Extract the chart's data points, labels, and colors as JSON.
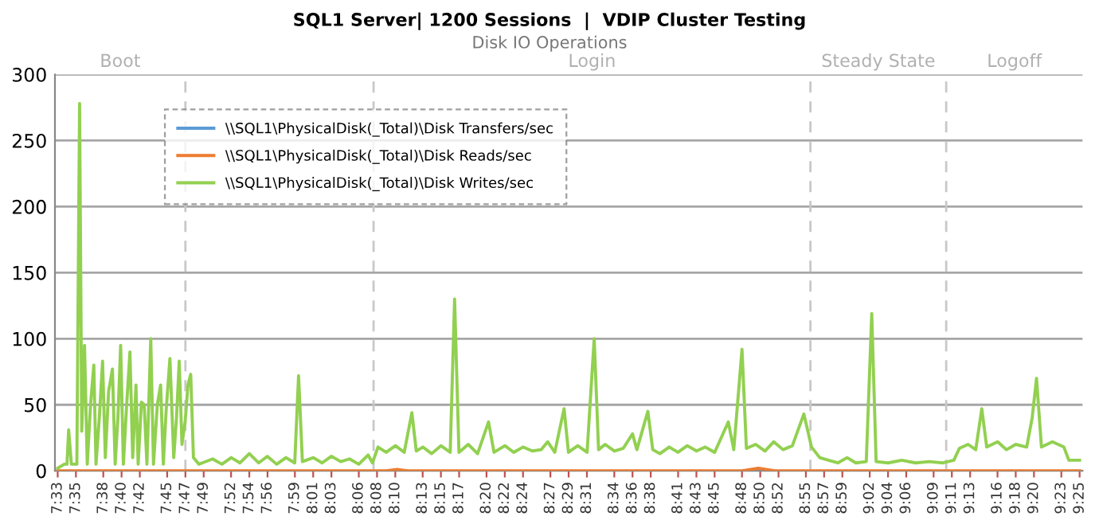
{
  "chart_data": {
    "type": "line",
    "title": "SQL1 Server| 1200 Sessions  |  VDIP Cluster Testing",
    "subtitle": "Disk IO Operations",
    "xlim": [
      7.545,
      9.422
    ],
    "ylim": [
      0,
      300
    ],
    "yticks": [
      0,
      50,
      100,
      150,
      200,
      250,
      300
    ],
    "xticks": [
      {
        "value": 7.55,
        "label": "7:33"
      },
      {
        "value": 7.5833,
        "label": "7:35"
      },
      {
        "value": 7.6333,
        "label": "7:38"
      },
      {
        "value": 7.6667,
        "label": "7:40"
      },
      {
        "value": 7.7,
        "label": "7:42"
      },
      {
        "value": 7.75,
        "label": "7:45"
      },
      {
        "value": 7.7833,
        "label": "7:47"
      },
      {
        "value": 7.8167,
        "label": "7:49"
      },
      {
        "value": 7.8667,
        "label": "7:52"
      },
      {
        "value": 7.9,
        "label": "7:54"
      },
      {
        "value": 7.9333,
        "label": "7:56"
      },
      {
        "value": 7.9833,
        "label": "7:59"
      },
      {
        "value": 8.0167,
        "label": "8:01"
      },
      {
        "value": 8.05,
        "label": "8:03"
      },
      {
        "value": 8.1,
        "label": "8:06"
      },
      {
        "value": 8.1333,
        "label": "8:08"
      },
      {
        "value": 8.1667,
        "label": "8:10"
      },
      {
        "value": 8.2167,
        "label": "8:13"
      },
      {
        "value": 8.25,
        "label": "8:15"
      },
      {
        "value": 8.2833,
        "label": "8:17"
      },
      {
        "value": 8.3333,
        "label": "8:20"
      },
      {
        "value": 8.3667,
        "label": "8:22"
      },
      {
        "value": 8.4,
        "label": "8:24"
      },
      {
        "value": 8.45,
        "label": "8:27"
      },
      {
        "value": 8.4833,
        "label": "8:29"
      },
      {
        "value": 8.5167,
        "label": "8:31"
      },
      {
        "value": 8.5667,
        "label": "8:34"
      },
      {
        "value": 8.6,
        "label": "8:36"
      },
      {
        "value": 8.6333,
        "label": "8:38"
      },
      {
        "value": 8.6833,
        "label": "8:41"
      },
      {
        "value": 8.7167,
        "label": "8:43"
      },
      {
        "value": 8.75,
        "label": "8:45"
      },
      {
        "value": 8.8,
        "label": "8:48"
      },
      {
        "value": 8.8333,
        "label": "8:50"
      },
      {
        "value": 8.8667,
        "label": "8:52"
      },
      {
        "value": 8.9167,
        "label": "8:55"
      },
      {
        "value": 8.95,
        "label": "8:57"
      },
      {
        "value": 8.9833,
        "label": "8:59"
      },
      {
        "value": 9.0333,
        "label": "9:02"
      },
      {
        "value": 9.0667,
        "label": "9:04"
      },
      {
        "value": 9.1,
        "label": "9:06"
      },
      {
        "value": 9.15,
        "label": "9:09"
      },
      {
        "value": 9.1833,
        "label": "9:11"
      },
      {
        "value": 9.2167,
        "label": "9:13"
      },
      {
        "value": 9.2667,
        "label": "9:16"
      },
      {
        "value": 9.3,
        "label": "9:18"
      },
      {
        "value": 9.3333,
        "label": "9:20"
      },
      {
        "value": 9.3833,
        "label": "9:23"
      },
      {
        "value": 9.4167,
        "label": "9:25"
      }
    ],
    "grid": "y",
    "legend": "top left",
    "line_style": "solid",
    "ref_lines": [
      {
        "axis": "x",
        "value": 7.7833,
        "label": null,
        "line_style": "dashed",
        "color": "#c8c8c8"
      },
      {
        "axis": "x",
        "value": 8.127,
        "label": null,
        "line_style": "dashed",
        "color": "#c8c8c8"
      },
      {
        "axis": "x",
        "value": 8.925,
        "label": null,
        "line_style": "dashed",
        "color": "#c8c8c8"
      },
      {
        "axis": "x",
        "value": 9.173,
        "label": null,
        "line_style": "dashed",
        "color": "#c8c8c8"
      }
    ],
    "annotations": [
      "Boot",
      "Login",
      "Steady State",
      "Logoff"
    ],
    "series": [
      {
        "name": "\\\\SQL1\\PhysicalDisk(_Total)\\Disk Transfers/sec",
        "color": "#5b9bd5"
      },
      {
        "name": "\\\\SQL1\\PhysicalDisk(_Total)\\Disk Reads/sec",
        "color": "#ed7d31",
        "x": [
          7.55,
          8.15,
          8.17,
          8.19,
          8.8,
          8.83,
          8.86,
          9.4167
        ],
        "values": [
          0,
          0,
          1,
          0,
          0,
          2,
          0,
          0
        ]
      },
      {
        "name": "\\\\SQL1\\PhysicalDisk(_Total)\\Disk Writes/sec",
        "color": "#92d050",
        "x": [
          7.55,
          7.562,
          7.567,
          7.57,
          7.575,
          7.585,
          7.59,
          7.594,
          7.599,
          7.604,
          7.61,
          7.616,
          7.62,
          7.626,
          7.632,
          7.637,
          7.643,
          7.65,
          7.655,
          7.66,
          7.665,
          7.67,
          7.676,
          7.682,
          7.687,
          7.693,
          7.697,
          7.703,
          7.708,
          7.713,
          7.72,
          7.725,
          7.732,
          7.738,
          7.743,
          7.748,
          7.755,
          7.762,
          7.767,
          7.772,
          7.777,
          7.783,
          7.788,
          7.793,
          7.798,
          7.808,
          7.833,
          7.85,
          7.867,
          7.883,
          7.9,
          7.917,
          7.933,
          7.95,
          7.967,
          7.983,
          7.99,
          7.997,
          8.017,
          8.033,
          8.05,
          8.067,
          8.083,
          8.1,
          8.117,
          8.125,
          8.135,
          8.15,
          8.167,
          8.183,
          8.197,
          8.205,
          8.217,
          8.233,
          8.25,
          8.267,
          8.275,
          8.283,
          8.3,
          8.317,
          8.337,
          8.347,
          8.367,
          8.383,
          8.4,
          8.417,
          8.433,
          8.445,
          8.458,
          8.475,
          8.483,
          8.5,
          8.517,
          8.53,
          8.538,
          8.55,
          8.567,
          8.583,
          8.6,
          8.608,
          8.628,
          8.637,
          8.65,
          8.667,
          8.683,
          8.7,
          8.717,
          8.733,
          8.75,
          8.775,
          8.785,
          8.8,
          8.808,
          8.825,
          8.842,
          8.858,
          8.875,
          8.892,
          8.913,
          8.927,
          8.942,
          8.958,
          8.975,
          8.992,
          9.008,
          9.027,
          9.037,
          9.045,
          9.067,
          9.092,
          9.117,
          9.142,
          9.167,
          9.187,
          9.197,
          9.213,
          9.227,
          9.238,
          9.247,
          9.267,
          9.283,
          9.3,
          9.32,
          9.33,
          9.338,
          9.347,
          9.367,
          9.388,
          9.397,
          9.4167
        ],
        "values": [
          2,
          5,
          5,
          31,
          5,
          5,
          278,
          30,
          95,
          5,
          50,
          80,
          5,
          40,
          83,
          10,
          60,
          77,
          5,
          40,
          95,
          5,
          50,
          90,
          10,
          65,
          5,
          52,
          50,
          5,
          100,
          5,
          50,
          65,
          5,
          45,
          85,
          10,
          40,
          83,
          20,
          38,
          65,
          73,
          10,
          5,
          9,
          5,
          10,
          6,
          13,
          6,
          11,
          5,
          10,
          6,
          72,
          7,
          10,
          6,
          11,
          7,
          9,
          5,
          12,
          6,
          18,
          14,
          19,
          14,
          44,
          15,
          18,
          13,
          19,
          14,
          130,
          14,
          20,
          13,
          37,
          14,
          19,
          14,
          18,
          15,
          16,
          22,
          14,
          47,
          14,
          19,
          14,
          100,
          16,
          20,
          15,
          17,
          28,
          16,
          45,
          16,
          13,
          18,
          14,
          19,
          15,
          18,
          14,
          37,
          16,
          92,
          17,
          20,
          15,
          22,
          16,
          19,
          43,
          18,
          10,
          8,
          6,
          10,
          6,
          7,
          119,
          7,
          6,
          8,
          6,
          7,
          6,
          8,
          17,
          20,
          16,
          47,
          18,
          22,
          16,
          20,
          18,
          40,
          70,
          18,
          22,
          18,
          8,
          8
        ]
      }
    ]
  }
}
